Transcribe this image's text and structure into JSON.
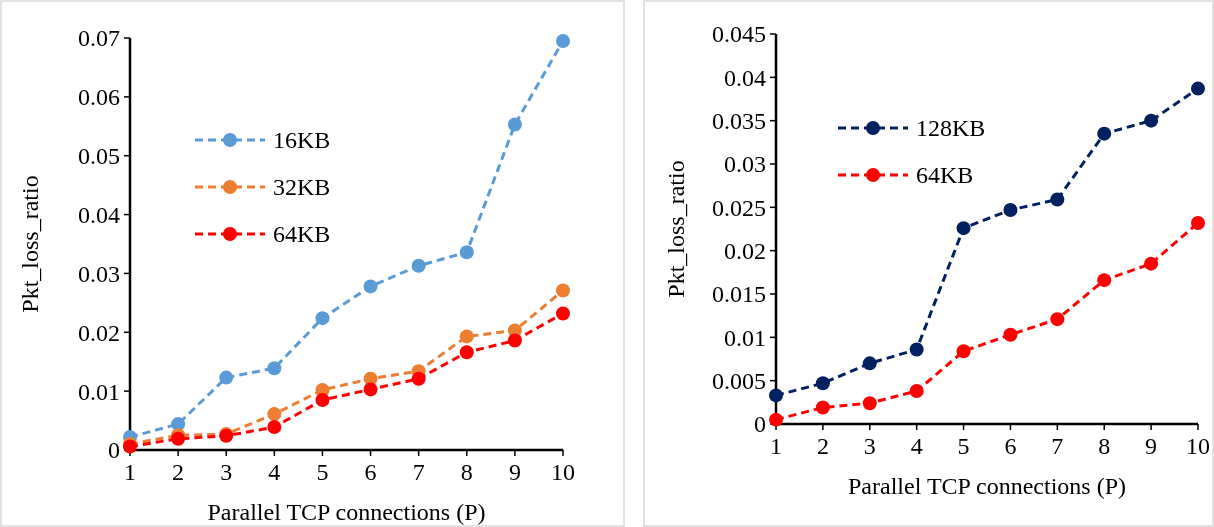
{
  "chart_data": [
    {
      "type": "line",
      "xlabel": "Parallel TCP connections (P)",
      "ylabel": "Pkt_loss_ratio",
      "categories": [
        "1",
        "2",
        "3",
        "4",
        "5",
        "6",
        "7",
        "8",
        "9",
        "10"
      ],
      "ylim": [
        0,
        0.07
      ],
      "yticks": [
        0,
        0.01,
        0.02,
        0.03,
        0.04,
        0.05,
        0.06,
        0.07
      ],
      "legend": "top left",
      "marker": "circle",
      "line_style": "dashed",
      "series": [
        {
          "name": "16KB",
          "color": "#5b9bd5",
          "values": [
            0.0022,
            0.0044,
            0.0123,
            0.0139,
            0.0224,
            0.0278,
            0.0313,
            0.0336,
            0.0553,
            0.0695
          ]
        },
        {
          "name": "32KB",
          "color": "#ed7d31",
          "values": [
            0.001,
            0.0025,
            0.0027,
            0.0061,
            0.0102,
            0.0121,
            0.0134,
            0.0193,
            0.0203,
            0.0271
          ]
        },
        {
          "name": "64KB",
          "color": "#ff0000",
          "values": [
            0.0006,
            0.0019,
            0.0024,
            0.0039,
            0.0085,
            0.0103,
            0.0121,
            0.0166,
            0.0186,
            0.0232
          ]
        }
      ]
    },
    {
      "type": "line",
      "xlabel": "Parallel TCP connections (P)",
      "ylabel": "Pkt_loss_ratio",
      "categories": [
        "1",
        "2",
        "3",
        "4",
        "5",
        "6",
        "7",
        "8",
        "9",
        "10"
      ],
      "ylim": [
        0,
        0.045
      ],
      "yticks": [
        0,
        0.005,
        0.01,
        0.015,
        0.02,
        0.025,
        0.03,
        0.035,
        0.04,
        0.045
      ],
      "legend": "top left",
      "marker": "circle",
      "line_style": "dashed",
      "series": [
        {
          "name": "128KB",
          "color": "#002060",
          "values": [
            0.0033,
            0.0047,
            0.007,
            0.0086,
            0.0226,
            0.0247,
            0.0259,
            0.0335,
            0.035,
            0.0387
          ]
        },
        {
          "name": "64KB",
          "color": "#ff0000",
          "values": [
            0.0005,
            0.0019,
            0.0024,
            0.0038,
            0.0084,
            0.0103,
            0.0121,
            0.0166,
            0.0185,
            0.0232
          ]
        }
      ]
    }
  ]
}
